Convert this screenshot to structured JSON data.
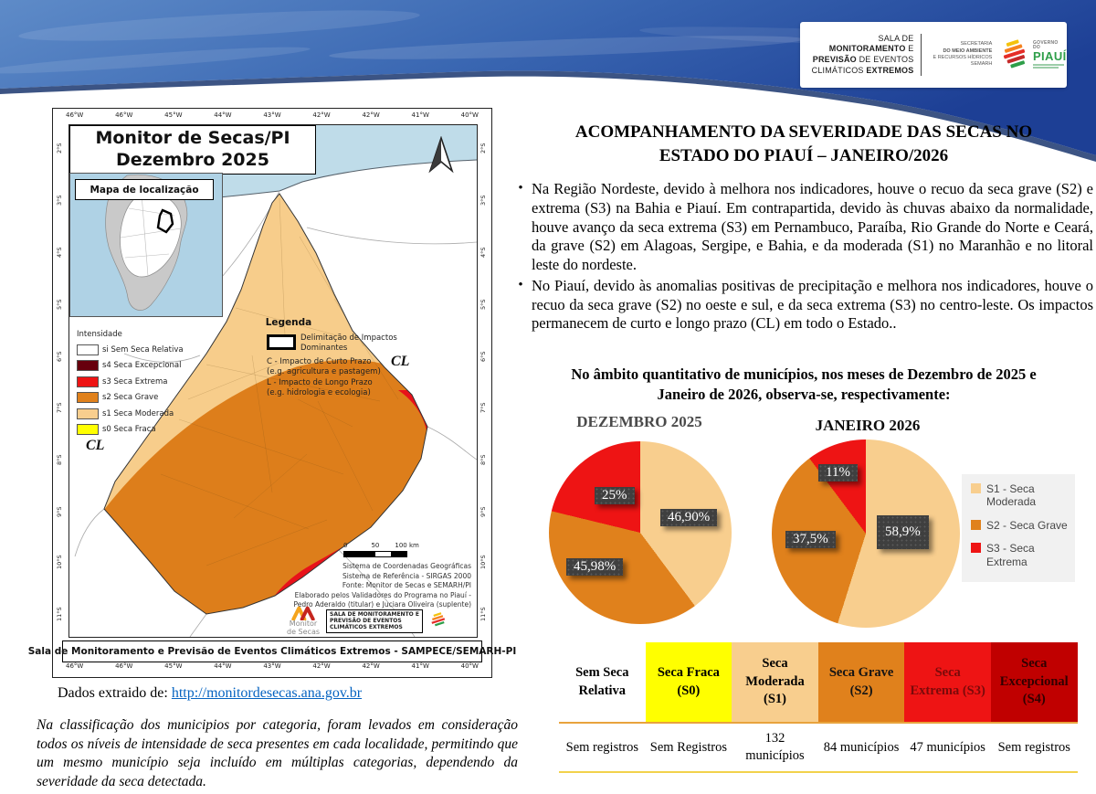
{
  "theme": {
    "banner1": "#5E8BC8",
    "banner2": "#3A67B2",
    "banner3": "#1D3F95",
    "crest": "#1A366F",
    "ocean": "#BFDCE9",
    "si": "#FFFFFF",
    "s0": "#FFFF00",
    "s1": "#F8CE8E",
    "s2": "#E0811C",
    "s3": "#EE1414",
    "s4": "#C00000",
    "s4legend": "#67000D",
    "s1m": "#F7CD8B",
    "s2m": "#DD7E1B",
    "s3m": "#E8121A",
    "labelbox": "#3F3F3F",
    "link": "#0563C1",
    "legendbg": "#F1F1F1",
    "gold1": "#E8A33D",
    "gold2": "#F2D24B"
  },
  "header": {
    "sala": {
      "l1a": "SALA DE ",
      "l1b": "MONITORAMENTO",
      "l1c": " E",
      "l2a": "PREVISÃO",
      "l2b": " DE EVENTOS",
      "l3a": "CLIMÁTICOS ",
      "l3b": "EXTREMOS"
    },
    "semarh": {
      "l1": "SECRETARIA",
      "l2": "DO MEIO AMBIENTE",
      "l3": "E RECURSOS HÍDRICOS",
      "l4": "SEMARH"
    },
    "gov": {
      "top": "GOVERNO DO",
      "name": "PIAUÍ"
    }
  },
  "map_panel": {
    "title_line1": "Monitor de Secas/PI",
    "title_line2": "Dezembro 2025",
    "inset_title": "Mapa de localização",
    "lon_labels": [
      "46°W",
      "46°W",
      "45°W",
      "44°W",
      "43°W",
      "42°W",
      "42°W",
      "41°W",
      "40°W"
    ],
    "lat_labels": [
      "2°S",
      "3°S",
      "4°S",
      "5°S",
      "6°S",
      "7°S",
      "8°S",
      "9°S",
      "10°S",
      "11°S"
    ],
    "legend": {
      "title": "Legenda",
      "intensity_title": "Intensidade",
      "items": [
        "si Sem Seca Relativa",
        "s4 Seca Excepcional",
        "s3 Seca Extrema",
        "s2 Seca Grave",
        "s1 Seca Moderada",
        "s0 Seca Fraca"
      ],
      "delimitation_label": "Delimitação de Impactos Dominantes",
      "c_label": "C - Impacto de Curto Prazo",
      "c_sub": "(e.g. agricultura e pastagem)",
      "l_label": "L - Impacto de Longo Prazo",
      "l_sub": "(e.g. hidrologia e ecologia)"
    },
    "cl_label": "CL",
    "scale": {
      "t0": "0",
      "t50": "50",
      "t100": "100 km"
    },
    "credits": [
      "Sistema de Coordenadas Geográficas",
      "Sistema de Referência - SIRGAS 2000",
      "Fonte: Monitor de Secas e SEMARH/PI",
      "Elaborado pelos Validadores do Programa no Piauí -",
      "Pedro Aderaldo (titular) e Juciara Oliveira (suplente)"
    ],
    "monitor_logo": {
      "l1": "Monitor",
      "l2": "de Secas"
    },
    "mini_box": {
      "l1": "SALA DE MONITORAMENTO E",
      "l2": "PREVISÃO DE EVENTOS",
      "l3": "CLIMÁTICOS EXTREMOS"
    },
    "footer": "Sala de Monitoramento e Previsão de Eventos Climáticos Extremos - SAMPECE/SEMARH-PI"
  },
  "content": {
    "title_line1": "ACOMPANHAMENTO DA SEVERIDADE DAS SECAS NO",
    "title_line2": "ESTADO DO PIAUÍ – JANEIRO/2026",
    "bullet1": "Na Região Nordeste, devido à melhora nos indicadores, houve o recuo da seca grave (S2) e extrema (S3) na Bahia e Piauí. Em contrapartida, devido às chuvas abaixo da normalidade, houve avanço da seca extrema (S3) em Pernambuco, Paraíba, Rio Grande do Norte e Ceará, da grave (S2) em Alagoas, Sergipe, e Bahia, e da moderada (S1) no Maranhão e no litoral leste do nordeste.",
    "bullet2": "No Piauí, devido às anomalias positivas de precipitação e melhora nos indicadores, houve o recuo da seca grave (S2) no oeste e sul, e da seca extrema (S3) no centro-leste. Os impactos permanecem de curto e longo prazo (CL) em todo o Estado..",
    "statement_line1": "No âmbito quantitativo de municípios, nos meses de Dezembro de 2025 e",
    "statement_line2": "Janeiro de 2026, observa-se, respectivamente:",
    "source_prefix": "Dados extraido de: ",
    "source_link": "http://monitordesecas.ana.gov.br",
    "note": "Na classificação dos municipios por categoria, foram levados em consideração todos os níveis de intensidade de seca presentes em cada localidade, permitindo que um mesmo município seja incluído em múltiplas categorias, dependendo da severidade da seca detectada."
  },
  "chart_data": [
    {
      "type": "pie",
      "title": "DEZEMBRO 2025",
      "labels": [
        "S1 - Seca Moderada",
        "S2 - Seca Grave",
        "S3 - Seca Extrema"
      ],
      "values": [
        46.9,
        45.98,
        25
      ],
      "value_labels": [
        "46,90%",
        "45,98%",
        "25%"
      ],
      "colors": [
        "#F8CE8E",
        "#E0811C",
        "#EE1414"
      ],
      "start_angle_deg": 0,
      "direction": "clockwise"
    },
    {
      "type": "pie",
      "title": "JANEIRO 2026",
      "labels": [
        "S1 - Seca Moderada",
        "S2 - Seca Grave",
        "S3 - Seca Extrema"
      ],
      "values": [
        58.9,
        37.5,
        11
      ],
      "value_labels": [
        "58,9%",
        "37,5%",
        "11%"
      ],
      "colors": [
        "#F8CE8E",
        "#E0811C",
        "#EE1414"
      ],
      "legend_items": [
        "S1 - Seca Moderada",
        "S2 - Seca Grave",
        "S3 - Seca Extrema"
      ],
      "legend_colors": [
        "#F8CE8E",
        "#E0811C",
        "#EE1414"
      ],
      "start_angle_deg": 0,
      "direction": "clockwise"
    },
    {
      "type": "table",
      "columns": [
        "Sem Seca Relativa",
        "Seca Fraca (S0)",
        "Seca Moderada (S1)",
        "Seca Grave (S2)",
        "Seca Extrema (S3)",
        "Seca Excepcional (S4)"
      ],
      "values": [
        "Sem registros",
        "Sem Registros",
        "132 municípios",
        "84 municípios",
        "47 municípios",
        "Sem registros"
      ]
    }
  ]
}
